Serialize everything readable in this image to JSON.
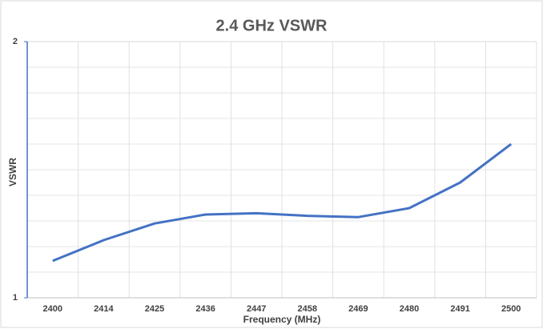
{
  "chart_data": {
    "type": "line",
    "title": "2.4 GHz VSWR",
    "x_label": "Frequency (MHz)",
    "y_label": "VSWR",
    "categories": [
      "2400",
      "2414",
      "2425",
      "2436",
      "2447",
      "2458",
      "2469",
      "2480",
      "2491",
      "2500"
    ],
    "series": [
      {
        "name": "VSWR",
        "color": "#4472c4",
        "values": [
          1.144,
          1.225,
          1.29,
          1.325,
          1.33,
          1.32,
          1.315,
          1.35,
          1.45,
          1.6
        ]
      }
    ],
    "ylim": [
      1,
      2
    ],
    "yticks": [
      1,
      2
    ],
    "y_minor_ticks": [
      1.1,
      1.2,
      1.3,
      1.4,
      1.5,
      1.6,
      1.7,
      1.8,
      1.9
    ],
    "grid": true
  }
}
